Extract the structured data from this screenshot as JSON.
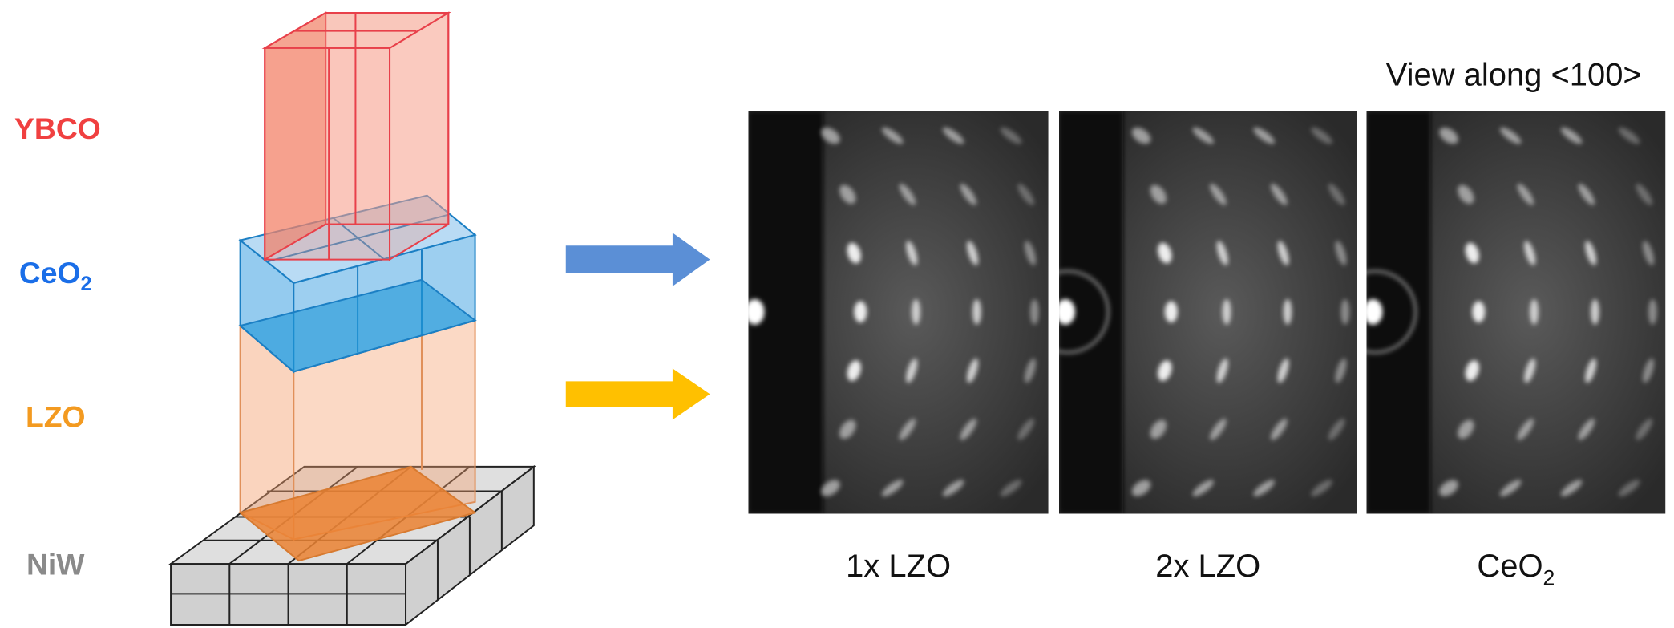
{
  "layers": [
    {
      "label": "YBCO"
    },
    {
      "label": "CeO",
      "sub": "2"
    },
    {
      "label": "LZO"
    },
    {
      "label": "NiW"
    }
  ],
  "view_caption": "View along <100>",
  "patterns": [
    {
      "caption": "1x LZO"
    },
    {
      "caption": "2x LZO"
    },
    {
      "caption": "CeO",
      "sub": "2"
    }
  ]
}
